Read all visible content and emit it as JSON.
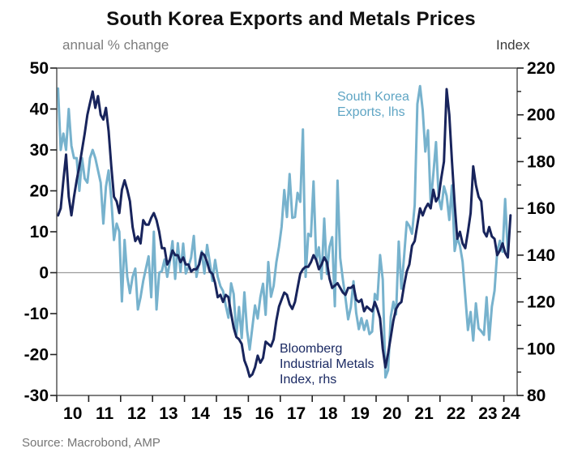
{
  "chart": {
    "title": "South Korea Exports and Metals Prices",
    "left_axis_label": "annual % change",
    "right_axis_label": "Index",
    "legend": {
      "exports_line1": "South Korea",
      "exports_line2": "Exports, lhs",
      "metals_line1": "Bloomberg",
      "metals_line2": "Industrial Metals",
      "metals_line3": "Index, rhs"
    },
    "source": "Source: Macrobond, AMP"
  },
  "chart_data": {
    "type": "line",
    "title": "South Korea Exports and Metals Prices",
    "source": "Source: Macrobond, AMP",
    "grid": "zero-line-only",
    "zero_gridline": true,
    "left_axis": {
      "label": "annual % change",
      "min": -30,
      "max": 50,
      "ticks": [
        50,
        40,
        30,
        20,
        10,
        0,
        -10,
        -20,
        -30
      ]
    },
    "right_axis": {
      "label": "Index",
      "min": 80,
      "max": 220,
      "ticks": [
        220,
        200,
        180,
        160,
        140,
        120,
        100,
        80
      ],
      "minor_ticks": [
        210,
        190,
        170,
        150,
        130,
        110,
        90
      ]
    },
    "x_axis": {
      "start_year": 2010,
      "tick_years": [
        2010,
        2011,
        2012,
        2013,
        2014,
        2015,
        2016,
        2017,
        2018,
        2019,
        2020,
        2021,
        2022,
        2023,
        2024
      ],
      "tick_labels": [
        "10",
        "11",
        "12",
        "13",
        "14",
        "15",
        "16",
        "17",
        "18",
        "19",
        "20",
        "21",
        "22",
        "23",
        "24"
      ]
    },
    "series": [
      {
        "name": "South Korea Exports, lhs",
        "axis": "left",
        "unit": "annual % change",
        "color": "#77B2CD",
        "start_year": 2010,
        "freq": "monthly",
        "values": [
          45,
          30,
          34,
          30,
          40,
          31,
          28,
          28,
          20,
          28,
          23,
          22,
          28,
          30,
          28,
          25,
          22,
          12,
          21,
          25,
          18,
          8,
          12,
          10,
          -7,
          8,
          -1,
          -5,
          -1,
          1,
          -9,
          -6,
          -2,
          1,
          4,
          -6,
          10,
          -9,
          0,
          0.4,
          3.2,
          -1,
          2.6,
          7.7,
          -1.5,
          7.2,
          0.2,
          7.1,
          -0.2,
          1.4,
          3.7,
          9,
          -1,
          2.5,
          5.2,
          -0.2,
          6.8,
          2.5,
          -2,
          3.1,
          -1,
          -3.3,
          -4.5,
          -8,
          -11,
          -2.6,
          -5.2,
          -15.2,
          -8.4,
          -16,
          -4.8,
          -14.1,
          -18.8,
          -13.4,
          -8,
          -11.2,
          -6,
          -2.7,
          -10.3,
          2.6,
          -5.9,
          -3.2,
          2.5,
          6.4,
          11.2,
          20.2,
          13.6,
          24.1,
          13.4,
          13.6,
          19.5,
          17.3,
          35,
          -1,
          9.5,
          8.9,
          22.3,
          3.1,
          6.2,
          -1.5,
          13.2,
          -0.3,
          6.3,
          8.7,
          -8.2,
          22.5,
          3.6,
          -1.7,
          -6.2,
          -11.4,
          -8.4,
          -2.1,
          -9.8,
          -13.8,
          -11.1,
          -14,
          -11.7,
          -15,
          -14.4,
          -5.2,
          -6.6,
          4.3,
          -1.7,
          -25.6,
          -23.8,
          -10.8,
          -7.1,
          -10.2,
          7.6,
          -3.9,
          3.9,
          12.4,
          11.4,
          9.5,
          16.5,
          41.2,
          45.6,
          39.7,
          29.6,
          34.8,
          16.9,
          24.1,
          31.9,
          18.3,
          15.5,
          21.1,
          18.8,
          12.9,
          21.3,
          5.3,
          8.6,
          6.6,
          2.7,
          -5.7,
          -14,
          -9.6,
          -16.6,
          -7.5,
          -13.6,
          -14.3,
          -15.2,
          -6,
          -16.4,
          -8.3,
          -4.4,
          5.1,
          7.8,
          5.1,
          18,
          4.8
        ]
      },
      {
        "name": "Bloomberg Industrial Metals Index, rhs",
        "axis": "right",
        "unit": "Index",
        "color": "#18245C",
        "start_year": 2010,
        "freq": "monthly",
        "values": [
          157,
          160,
          172,
          183,
          165,
          157,
          165,
          172,
          178,
          185,
          192,
          200,
          205,
          210,
          203,
          208,
          200,
          198,
          203,
          193,
          178,
          165,
          163,
          158,
          168,
          172,
          168,
          163,
          152,
          146,
          148,
          145,
          155,
          153,
          153,
          156,
          158,
          155,
          150,
          143,
          143,
          136,
          138,
          142,
          140,
          140,
          137,
          139,
          136,
          136,
          133,
          134,
          134,
          136,
          141,
          140,
          137,
          133,
          132,
          128,
          122,
          123,
          120,
          123,
          122,
          115,
          109,
          105,
          104,
          102,
          95,
          92,
          88,
          89,
          92,
          97,
          94,
          96,
          103,
          102,
          101,
          104,
          112,
          118,
          121,
          124,
          123,
          119,
          117,
          120,
          126,
          132,
          134,
          135,
          135,
          137,
          140,
          138,
          134,
          136,
          139,
          137,
          130,
          126,
          127,
          128,
          126,
          124,
          123,
          126,
          126,
          127,
          121,
          120,
          121,
          116,
          118,
          117,
          116,
          120,
          117,
          113,
          100,
          92,
          98,
          105,
          112,
          117,
          119,
          120,
          127,
          133,
          136,
          144,
          146,
          153,
          160,
          157,
          160,
          162,
          160,
          168,
          163,
          165,
          173,
          180,
          211,
          200,
          180,
          162,
          147,
          150,
          145,
          143,
          150,
          158,
          178,
          170,
          165,
          163,
          150,
          148,
          152,
          148,
          147,
          140,
          142,
          145,
          141,
          139,
          157
        ]
      }
    ]
  }
}
